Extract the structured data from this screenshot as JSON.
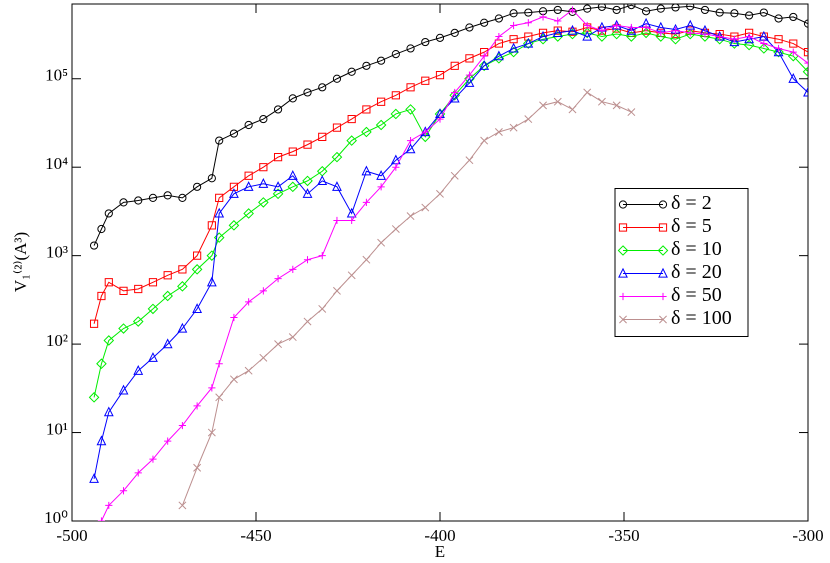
{
  "chart_data": {
    "type": "line",
    "xlabel": "E",
    "ylabel": "V₁⁽²⁾(A³)",
    "log_y": true,
    "legend": "right",
    "xlim": [
      -500,
      -300
    ],
    "xticks": [
      -500,
      -450,
      -400,
      -350,
      -300
    ],
    "ylim": [
      1,
      700000
    ],
    "yticks": [
      {
        "value": 1,
        "label": "10⁰"
      },
      {
        "value": 10,
        "label": "10¹"
      },
      {
        "value": 100,
        "label": "10²"
      },
      {
        "value": 1000,
        "label": "10³"
      },
      {
        "value": 10000,
        "label": "10⁴"
      },
      {
        "value": 100000,
        "label": "10⁵"
      }
    ],
    "x": [
      -494,
      -492,
      -490,
      -486,
      -482,
      -478,
      -474,
      -470,
      -466,
      -462,
      -460,
      -456,
      -452,
      -448,
      -444,
      -440,
      -436,
      -432,
      -428,
      -424,
      -420,
      -416,
      -412,
      -408,
      -404,
      -400,
      -396,
      -392,
      -388,
      -384,
      -380,
      -376,
      -372,
      -368,
      -364,
      -360,
      -356,
      -352,
      -348,
      -344,
      -340,
      -336,
      -332,
      -328,
      -324,
      -320,
      -316,
      -312,
      -308,
      -304,
      -300
    ],
    "series": [
      {
        "name": "δ = 2",
        "color": "#000000",
        "marker": "circle",
        "values": [
          1300,
          2000,
          3000,
          4000,
          4200,
          4500,
          4800,
          4500,
          6000,
          7500,
          20000,
          24000,
          30000,
          35000,
          45000,
          60000,
          70000,
          80000,
          100000,
          120000,
          140000,
          160000,
          190000,
          220000,
          260000,
          290000,
          330000,
          380000,
          430000,
          480000,
          550000,
          560000,
          580000,
          600000,
          570000,
          620000,
          650000,
          600000,
          680000,
          580000,
          620000,
          640000,
          660000,
          600000,
          560000,
          550000,
          520000,
          560000,
          480000,
          500000,
          420000
        ]
      },
      {
        "name": "δ = 5",
        "color": "#ff0000",
        "marker": "square",
        "values": [
          170,
          350,
          500,
          400,
          420,
          500,
          600,
          700,
          1000,
          2200,
          4500,
          6000,
          8000,
          10000,
          13000,
          15000,
          18000,
          22000,
          28000,
          35000,
          45000,
          55000,
          65000,
          80000,
          95000,
          110000,
          140000,
          170000,
          200000,
          250000,
          280000,
          300000,
          330000,
          350000,
          340000,
          380000,
          350000,
          370000,
          330000,
          350000,
          330000,
          320000,
          350000,
          330000,
          320000,
          300000,
          330000,
          300000,
          280000,
          250000,
          200000
        ]
      },
      {
        "name": "δ = 10",
        "color": "#00ee00",
        "marker": "diamond",
        "values": [
          25,
          60,
          110,
          150,
          180,
          250,
          350,
          450,
          700,
          1000,
          1600,
          2200,
          3000,
          4000,
          5000,
          6000,
          7000,
          9000,
          13000,
          20000,
          25000,
          30000,
          40000,
          45000,
          22000,
          40000,
          65000,
          100000,
          140000,
          170000,
          200000,
          250000,
          280000,
          300000,
          320000,
          330000,
          300000,
          320000,
          300000,
          330000,
          300000,
          280000,
          320000,
          300000,
          280000,
          250000,
          240000,
          220000,
          200000,
          180000,
          120000
        ]
      },
      {
        "name": "δ = 20",
        "color": "#0000ff",
        "marker": "triangle",
        "values": [
          3,
          8,
          17,
          30,
          50,
          70,
          100,
          150,
          250,
          500,
          3000,
          5000,
          6000,
          6500,
          6000,
          8000,
          5000,
          7000,
          6000,
          3000,
          9000,
          8000,
          12000,
          16000,
          25000,
          40000,
          60000,
          90000,
          140000,
          180000,
          220000,
          250000,
          300000,
          330000,
          350000,
          300000,
          380000,
          400000,
          350000,
          420000,
          380000,
          360000,
          400000,
          350000,
          300000,
          260000,
          280000,
          300000,
          200000,
          100000,
          70000
        ]
      },
      {
        "name": "δ = 50",
        "color": "#ff00ff",
        "marker": "plus",
        "values": [
          null,
          1,
          1.5,
          2.2,
          3.5,
          5,
          8,
          12,
          20,
          32,
          60,
          200,
          300,
          400,
          550,
          700,
          900,
          1000,
          2500,
          2500,
          4000,
          6000,
          10000,
          20000,
          25000,
          35000,
          70000,
          110000,
          180000,
          300000,
          400000,
          430000,
          500000,
          450000,
          600000,
          400000,
          350000,
          400000,
          380000,
          380000,
          330000,
          350000,
          330000,
          320000,
          300000,
          280000,
          300000,
          250000,
          220000,
          200000,
          150000
        ]
      },
      {
        "name": "δ = 100",
        "color": "#bc8f8f",
        "marker": "cross",
        "values": [
          null,
          null,
          null,
          null,
          null,
          null,
          null,
          1.5,
          4,
          10,
          25,
          40,
          50,
          70,
          100,
          120,
          180,
          250,
          400,
          600,
          900,
          1400,
          2000,
          2800,
          3500,
          5000,
          8000,
          12000,
          20000,
          25000,
          28000,
          35000,
          50000,
          55000,
          45000,
          70000,
          55000,
          50000,
          42000,
          null,
          null,
          null,
          null,
          null,
          null,
          null,
          null,
          null,
          null,
          null,
          null
        ]
      }
    ]
  }
}
